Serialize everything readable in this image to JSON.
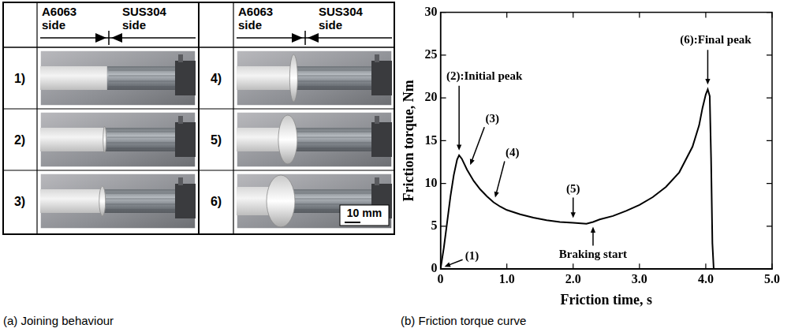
{
  "joining_behaviour": {
    "caption": "(a) Joining behaviour",
    "header": [
      "A6063 side",
      "SUS304 side"
    ],
    "rows": [
      "1)",
      "2)",
      "3)",
      "4)",
      "5)",
      "6)"
    ],
    "scale_bar": "10 mm"
  },
  "chart_data": {
    "type": "line",
    "caption": "(b) Friction torque curve",
    "x_label": "Friction time, s",
    "y_label": "Friction torque, Nm",
    "x": [
      0,
      0.05,
      0.1,
      0.15,
      0.2,
      0.25,
      0.28,
      0.32,
      0.4,
      0.5,
      0.6,
      0.7,
      0.8,
      0.9,
      1.0,
      1.2,
      1.4,
      1.6,
      1.8,
      2.0,
      2.2,
      2.3,
      2.4,
      2.6,
      2.8,
      3.0,
      3.2,
      3.4,
      3.6,
      3.8,
      3.9,
      3.95,
      4.0,
      4.03,
      4.06,
      4.08,
      4.1,
      4.12
    ],
    "values": [
      0,
      2.5,
      5.5,
      8.5,
      11,
      12.8,
      13.3,
      12.9,
      11.6,
      10.3,
      9.3,
      8.5,
      7.8,
      7.3,
      6.9,
      6.4,
      6.0,
      5.7,
      5.5,
      5.4,
      5.3,
      5.5,
      5.8,
      6.2,
      6.8,
      7.5,
      8.4,
      9.6,
      11.3,
      14.3,
      16.8,
      18.8,
      20.4,
      21.0,
      20.2,
      13,
      3,
      0
    ],
    "color": "#000000",
    "xlim": [
      0,
      5
    ],
    "xticks": [
      0,
      {
        "value": 1,
        "label": "1.0"
      },
      {
        "value": 2,
        "label": "2.0"
      },
      {
        "value": 3,
        "label": "3.0"
      },
      {
        "value": 4,
        "label": "4.0"
      },
      {
        "value": 5,
        "label": "5.0"
      }
    ],
    "ylim": [
      0,
      30
    ],
    "yticks": [
      0,
      5,
      10,
      15,
      20,
      25,
      30
    ],
    "grid": false,
    "annotations": [
      {
        "text": "(1)",
        "x": 0,
        "y": 0
      },
      {
        "text": "(2):Initial peak",
        "x": 0.28,
        "y": 13.3
      },
      {
        "text": "(3)",
        "x": 0.4,
        "y": 11.6
      },
      {
        "text": "(4)",
        "x": 0.8,
        "y": 7.8
      },
      {
        "text": "(5)",
        "x": 2.0,
        "y": 5.4
      },
      {
        "text": "Braking start",
        "x": 2.3,
        "y": 5.5
      },
      {
        "text": "(6):Final peak",
        "x": 4.03,
        "y": 21.0
      }
    ]
  }
}
